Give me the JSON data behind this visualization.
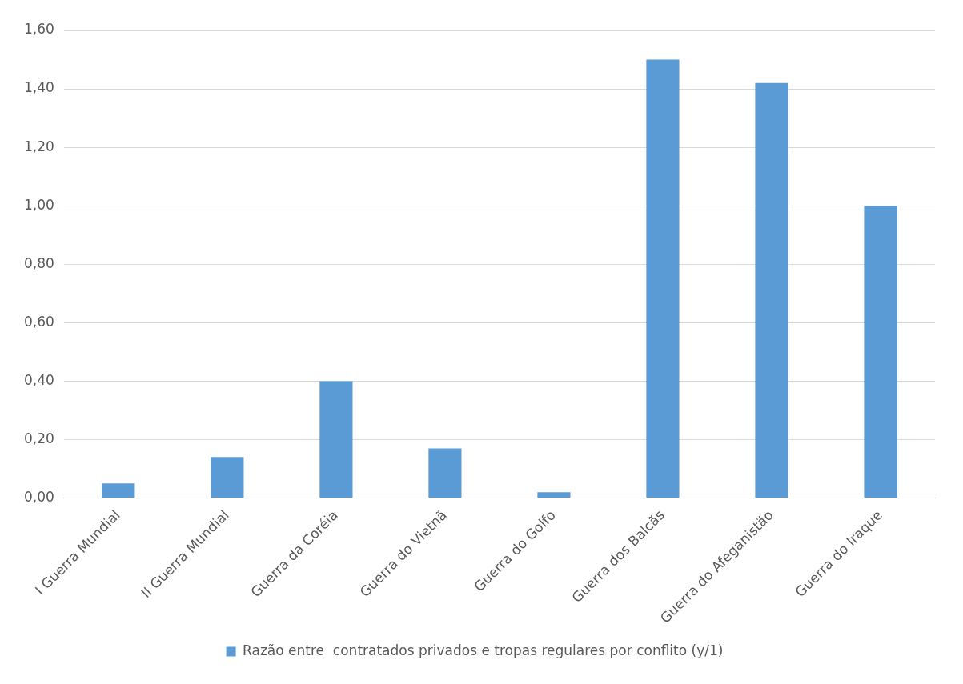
{
  "chart_data": {
    "type": "bar",
    "categories": [
      "I Guerra Mundial",
      "II Guerra Mundial",
      "Guerra da Coréia",
      "Guerra do Vietnã",
      "Guerra do Golfo",
      "Guerra dos Balcãs",
      "Guerra do Afeganistão",
      "Guerra do Iraque"
    ],
    "series": [
      {
        "name": "Razão entre  contratados privados e tropas regulares por conflito (y/1)",
        "color": "#5b9bd5",
        "values": [
          0.05,
          0.14,
          0.4,
          0.17,
          0.02,
          1.5,
          1.42,
          1.0
        ]
      }
    ],
    "ylim": [
      0,
      1.6
    ],
    "yticks": [
      {
        "value": 0,
        "label": "0,00"
      },
      {
        "value": 0.2,
        "label": "0,20"
      },
      {
        "value": 0.4,
        "label": "0,40"
      },
      {
        "value": 0.6,
        "label": "0,60"
      },
      {
        "value": 0.8,
        "label": "0,80"
      },
      {
        "value": 1,
        "label": "1,00"
      },
      {
        "value": 1.2,
        "label": "1,20"
      },
      {
        "value": 1.4,
        "label": "1,40"
      },
      {
        "value": 1.6,
        "label": "1,60"
      }
    ],
    "grid": "y",
    "legend": "bottom"
  }
}
